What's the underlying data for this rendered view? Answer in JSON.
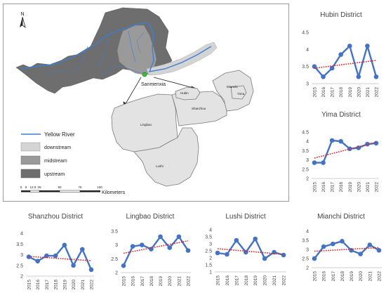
{
  "map": {
    "north_label": "N",
    "place_label": "Sanmenxia",
    "districts": [
      "Hubin",
      "Mianchi",
      "Yima",
      "Shanzhou",
      "Lingbao",
      "Lushi"
    ],
    "legend": {
      "river": "Yellow River",
      "downstream": "downstream",
      "midstream": "midstream",
      "upstream": "upstream"
    },
    "scale": {
      "ticks": [
        "0",
        "6",
        "12.5",
        "25",
        "50",
        "75",
        "100"
      ],
      "unit": "Kilometers"
    },
    "colors": {
      "river": "#3c7fd0",
      "upstream": "#6e6e6e",
      "midstream": "#9a9a9a",
      "downstream": "#d4d4d4",
      "districts": "#e3e3e3"
    }
  },
  "chart_data": [
    {
      "id": "hubin",
      "type": "line",
      "title": "Hubin District",
      "categories": [
        "2015",
        "2016",
        "2017",
        "2018",
        "2019",
        "2020",
        "2021",
        "2022"
      ],
      "values": [
        3.5,
        3.2,
        3.45,
        3.85,
        4.1,
        3.2,
        4.1,
        3.2
      ],
      "trend": [
        3.45,
        3.68
      ],
      "ylim": [
        3,
        4.5
      ],
      "yticks": [
        "3",
        "3.5",
        "4",
        "4.5"
      ],
      "ytick_values": [
        3,
        3.5,
        4,
        4.5
      ],
      "series_color": "#4472c4",
      "trend_color": "#e02020"
    },
    {
      "id": "yima",
      "type": "line",
      "title": "Yima District",
      "categories": [
        "2015",
        "2016",
        "2017",
        "2018",
        "2019",
        "2020",
        "2021",
        "2022"
      ],
      "values": [
        2.85,
        2.85,
        4.05,
        4.0,
        3.6,
        3.65,
        3.85,
        3.9
      ],
      "trend": [
        3.1,
        3.95
      ],
      "ylim": [
        2,
        4.5
      ],
      "yticks": [
        "2",
        "2.5",
        "3",
        "3.5",
        "4",
        "4.5"
      ],
      "ytick_values": [
        2,
        2.5,
        3,
        3.5,
        4,
        4.5
      ],
      "series_color": "#4472c4",
      "trend_color": "#e02020"
    },
    {
      "id": "shanzhou",
      "type": "line",
      "title": "Shanzhou District",
      "categories": [
        "2015",
        "2016",
        "2017",
        "2018",
        "2019",
        "2020",
        "2021",
        "2022"
      ],
      "values": [
        2.9,
        2.7,
        2.95,
        2.95,
        3.45,
        2.5,
        3.25,
        2.3
      ],
      "trend": [
        2.92,
        2.72
      ],
      "ylim": [
        2,
        4
      ],
      "yticks": [
        "2",
        "2.5",
        "3",
        "3.5",
        "4"
      ],
      "ytick_values": [
        2,
        2.5,
        3,
        3.5,
        4
      ],
      "series_color": "#4472c4",
      "trend_color": "#e02020"
    },
    {
      "id": "lingbao",
      "type": "line",
      "title": "Lingbao District",
      "categories": [
        "2015",
        "2016",
        "2017",
        "2018",
        "2019",
        "2020",
        "2021",
        "2022"
      ],
      "values": [
        2.25,
        2.95,
        3.0,
        2.85,
        3.3,
        2.9,
        3.3,
        2.8
      ],
      "trend": [
        2.7,
        3.15
      ],
      "ylim": [
        2,
        3.5
      ],
      "yticks": [
        "2",
        "2.5",
        "3",
        "3.5"
      ],
      "ytick_values": [
        2,
        2.5,
        3,
        3.5
      ],
      "series_color": "#4472c4",
      "trend_color": "#e02020"
    },
    {
      "id": "lushi",
      "type": "line",
      "title": "Lushi District",
      "categories": [
        "2015",
        "2016",
        "2017",
        "2018",
        "2019",
        "2020",
        "2021",
        "2022"
      ],
      "values": [
        2.35,
        2.25,
        3.25,
        2.4,
        3.35,
        1.95,
        2.4,
        2.2
      ],
      "trend": [
        2.65,
        2.25
      ],
      "ylim": [
        1,
        4
      ],
      "yticks": [
        "1",
        "1.5",
        "2",
        "2.5",
        "3",
        "3.5",
        "4"
      ],
      "ytick_values": [
        1,
        1.5,
        2,
        2.5,
        3,
        3.5,
        4
      ],
      "series_color": "#4472c4",
      "trend_color": "#e02020"
    },
    {
      "id": "mianchi",
      "type": "line",
      "title": "Mianchi District",
      "categories": [
        "2015",
        "2016",
        "2017",
        "2018",
        "2019",
        "2020",
        "2021",
        "2022"
      ],
      "values": [
        2.5,
        3.15,
        3.3,
        3.45,
        2.95,
        2.75,
        3.25,
        2.95
      ],
      "trend": [
        2.9,
        3.1
      ],
      "ylim": [
        2,
        4
      ],
      "yticks": [
        "2",
        "2.5",
        "3",
        "3.5",
        "4"
      ],
      "ytick_values": [
        2,
        2.5,
        3,
        3.5,
        4
      ],
      "series_color": "#4472c4",
      "trend_color": "#e02020"
    }
  ]
}
